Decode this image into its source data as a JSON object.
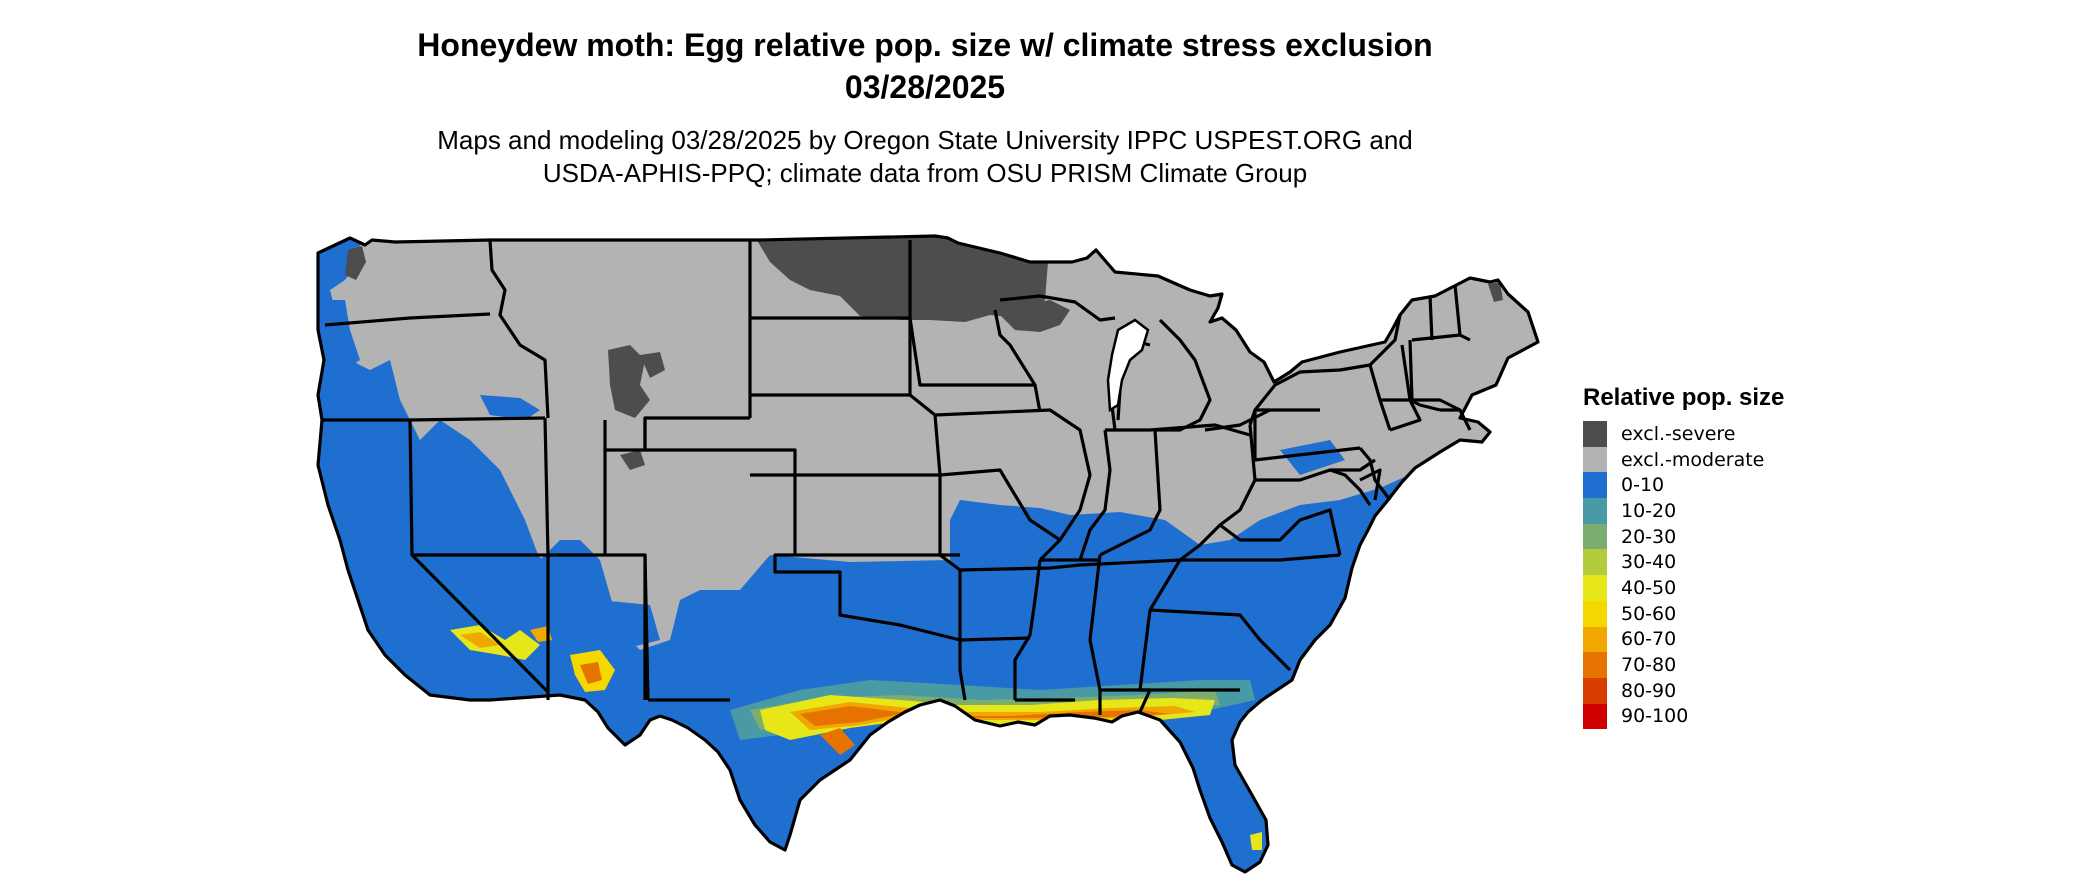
{
  "title": {
    "line1": "Honeydew moth: Egg relative pop. size w/ climate stress exclusion",
    "line2": "03/28/2025"
  },
  "subtitle": {
    "line1": "Maps and modeling 03/28/2025 by Oregon State University IPPC USPEST.ORG and",
    "line2": "USDA-APHIS-PPQ; climate data from OSU PRISM Climate Group"
  },
  "legend": {
    "title": "Relative pop. size",
    "items": [
      {
        "label": "excl.-severe",
        "color": "#4d4d4d"
      },
      {
        "label": "excl.-moderate",
        "color": "#b3b3b3"
      },
      {
        "label": "0-10",
        "color": "#1f6fd1"
      },
      {
        "label": "10-20",
        "color": "#4a9aa6"
      },
      {
        "label": "20-30",
        "color": "#7aad6e"
      },
      {
        "label": "30-40",
        "color": "#b3cc3d"
      },
      {
        "label": "40-50",
        "color": "#e6e619"
      },
      {
        "label": "50-60",
        "color": "#f5d800"
      },
      {
        "label": "60-70",
        "color": "#f0a800"
      },
      {
        "label": "70-80",
        "color": "#e67300"
      },
      {
        "label": "80-90",
        "color": "#d93d00"
      },
      {
        "label": "90-100",
        "color": "#d10000"
      }
    ]
  }
}
